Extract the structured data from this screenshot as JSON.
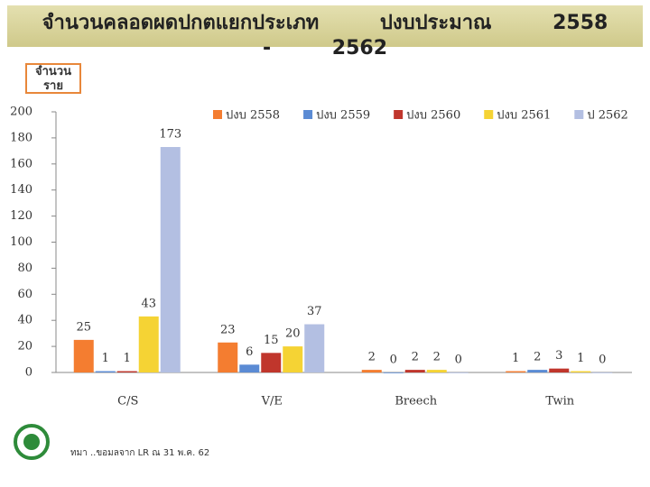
{
  "chart_data": {
    "type": "bar",
    "title": "จำนวนคลอดผดปกตแยกประเภท ปงบประมาณ 2558 - 2562",
    "y_label": "จำนวนราย",
    "categories": [
      "C/S",
      "V/E",
      "Breech",
      "Twin"
    ],
    "series": [
      {
        "name": "ปงบ 2558",
        "color": "#f47d30",
        "values": [
          25,
          23,
          2,
          1
        ]
      },
      {
        "name": "ปงบ 2559",
        "color": "#5b8bd4",
        "values": [
          1,
          6,
          0,
          2
        ]
      },
      {
        "name": "ปงบ 2560",
        "color": "#c0362c",
        "values": [
          1,
          15,
          2,
          3
        ]
      },
      {
        "name": "ปงบ 2561",
        "color": "#f5d334",
        "values": [
          43,
          20,
          2,
          1
        ]
      },
      {
        "name": "ป 2562",
        "color": "#b3bfe2",
        "values": [
          173,
          37,
          0,
          0
        ]
      }
    ],
    "ylim": [
      0,
      200
    ],
    "yticks": [
      0,
      20,
      40,
      60,
      80,
      100,
      120,
      140,
      160,
      180,
      200
    ],
    "grid": false,
    "source": "ทมา ..ขอมลจาก LR ณ 31 พ.ค. 62"
  }
}
